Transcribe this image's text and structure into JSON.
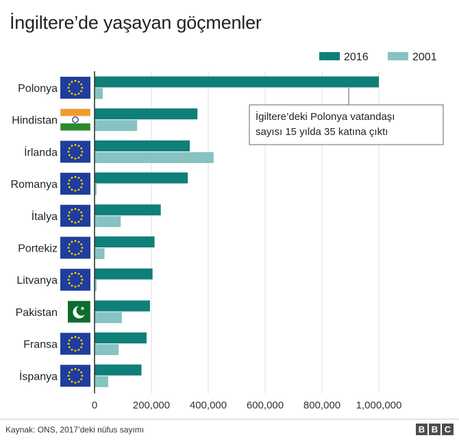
{
  "title": "İngiltere’de yaşayan göçmenler",
  "chart_data": {
    "type": "bar",
    "orientation": "horizontal",
    "categories": [
      "Polonya",
      "Hindistan",
      "İrlanda",
      "Romanya",
      "İtalya",
      "Portekiz",
      "Litvanya",
      "Pakistan",
      "Fransa",
      "İspanya"
    ],
    "flags": [
      "eu",
      "india",
      "eu",
      "eu",
      "eu",
      "eu",
      "eu",
      "pakistan",
      "eu",
      "eu"
    ],
    "series": [
      {
        "name": "2016",
        "color": "#0f7f7a",
        "values": [
          1000000,
          362000,
          335000,
          328000,
          233000,
          211000,
          204000,
          195000,
          183000,
          165000
        ]
      },
      {
        "name": "2001",
        "color": "#86c3c1",
        "values": [
          29000,
          150000,
          419000,
          7000,
          92000,
          35000,
          7000,
          96000,
          85000,
          48000
        ]
      }
    ],
    "xlim": [
      0,
      1000000
    ],
    "xticks": [
      0,
      200000,
      400000,
      600000,
      800000,
      1000000
    ],
    "xtick_labels": [
      "0",
      "200,000",
      "400,000",
      "600,000",
      "800,000",
      "1,000,000"
    ],
    "grid": true,
    "legend_position": "top-right",
    "annotation": {
      "lines": [
        "İgiltere’deki Polonya vatandaşı",
        "sayısı 15 yılda 35 katına çıktı"
      ],
      "target_category": "Polonya",
      "target_series": "2016"
    }
  },
  "footer": {
    "source": "Kaynak: ONS, 2017’deki nüfus sayımı",
    "logo": [
      "B",
      "B",
      "C"
    ]
  },
  "colors": {
    "gridline": "#dddddd",
    "axis": "#333333",
    "eu_blue": "#1f3d9c",
    "eu_star": "#ffd400"
  }
}
